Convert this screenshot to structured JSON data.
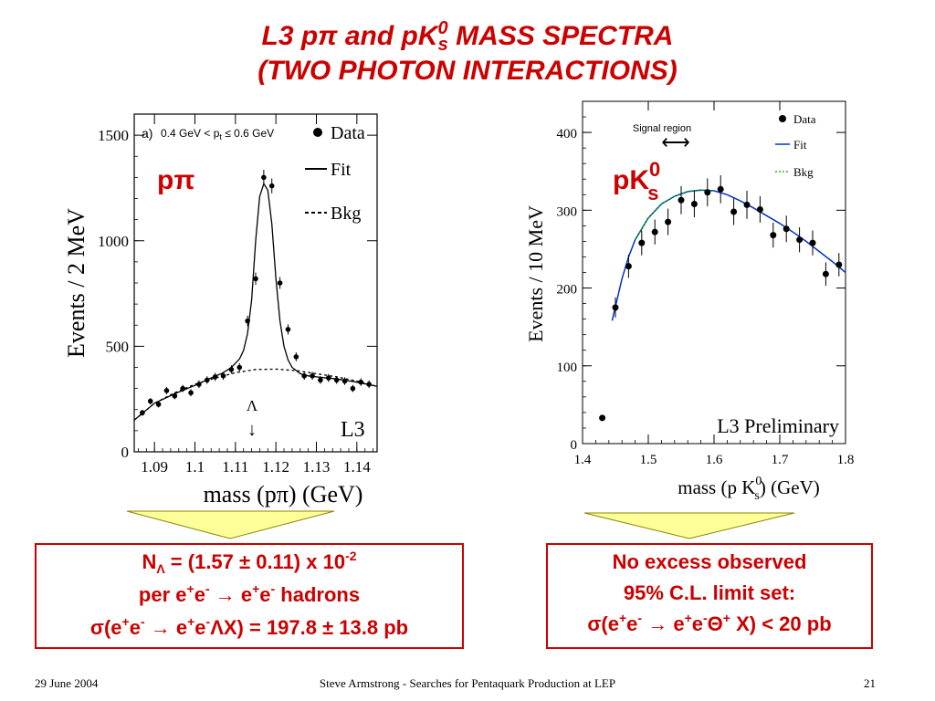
{
  "slide": {
    "title_line1_a": "L3 p",
    "title_line1_b": "π",
    "title_line1_c": " and pK",
    "title_line1_sup": "0",
    "title_line1_sub": "s",
    "title_line1_d": " MASS SPECTRA",
    "title_line2": "(TWO PHOTON INTERACTIONS)",
    "accent_color": "#cc0000",
    "arrow_fill": "#ffff99"
  },
  "left_plot": {
    "panel_label": "a)",
    "cut_label": "0.4 GeV < p",
    "cut_label_sub": "t",
    "cut_label_end": " ≤ 0.6 GeV",
    "overlay_label": "pπ",
    "experiment": "L3",
    "lambda_symbol": "Λ",
    "lambda_arrow": "↓"
  },
  "right_plot": {
    "overlay_label": "pK",
    "overlay_sup": "0",
    "overlay_sub": "s",
    "signal_region": "Signal region",
    "signal_arrow": "⟷",
    "experiment": "L3  Preliminary"
  },
  "chart_data": [
    {
      "type": "scatter",
      "ylabel": "Events / 2 MeV",
      "xlabel": "mass (pπ) (GeV)",
      "xlim": [
        1.085,
        1.145
      ],
      "ylim": [
        0,
        1600
      ],
      "x_ticks": [
        "1.09",
        "1.1",
        "1.11",
        "1.12",
        "1.13",
        "1.14"
      ],
      "y_ticks": [
        "0",
        "500",
        "1000",
        "1500"
      ],
      "legend": [
        "Data",
        "Fit",
        "Bkg"
      ],
      "series": [
        {
          "name": "Data",
          "x": [
            1.087,
            1.089,
            1.091,
            1.093,
            1.095,
            1.097,
            1.099,
            1.101,
            1.103,
            1.105,
            1.107,
            1.109,
            1.111,
            1.113,
            1.115,
            1.117,
            1.119,
            1.121,
            1.123,
            1.125,
            1.127,
            1.129,
            1.131,
            1.133,
            1.135,
            1.137,
            1.139,
            1.141,
            1.143
          ],
          "y": [
            185,
            240,
            225,
            290,
            265,
            300,
            280,
            320,
            340,
            355,
            360,
            390,
            400,
            620,
            820,
            1300,
            1260,
            800,
            580,
            450,
            360,
            360,
            340,
            350,
            340,
            335,
            300,
            330,
            320
          ],
          "err": [
            14,
            15,
            15,
            17,
            16,
            17,
            17,
            18,
            18,
            19,
            19,
            20,
            20,
            25,
            29,
            36,
            35,
            28,
            24,
            21,
            19,
            19,
            18,
            19,
            18,
            18,
            17,
            18,
            18
          ]
        },
        {
          "name": "Fit",
          "x": [
            1.085,
            1.09,
            1.095,
            1.1,
            1.104,
            1.107,
            1.109,
            1.111,
            1.112,
            1.113,
            1.114,
            1.115,
            1.116,
            1.117,
            1.118,
            1.119,
            1.12,
            1.121,
            1.122,
            1.123,
            1.124,
            1.126,
            1.128,
            1.13,
            1.135,
            1.14,
            1.145
          ],
          "y": [
            150,
            230,
            275,
            315,
            350,
            375,
            400,
            440,
            480,
            560,
            720,
            1000,
            1210,
            1270,
            1240,
            1080,
            820,
            620,
            500,
            435,
            400,
            370,
            360,
            355,
            345,
            330,
            310
          ]
        },
        {
          "name": "Bkg",
          "x": [
            1.085,
            1.09,
            1.095,
            1.1,
            1.105,
            1.11,
            1.115,
            1.12,
            1.125,
            1.13,
            1.135,
            1.14,
            1.145
          ],
          "y": [
            150,
            230,
            280,
            320,
            350,
            375,
            390,
            392,
            385,
            370,
            355,
            335,
            310
          ]
        }
      ]
    },
    {
      "type": "scatter",
      "ylabel": "Events / 10 MeV",
      "xlabel": "mass (p K",
      "xlabel_sup": "0",
      "xlabel_sub": "s",
      "xlabel_end": ") (GeV)",
      "xlim": [
        1.4,
        1.8
      ],
      "ylim": [
        0,
        440
      ],
      "x_ticks": [
        "1.4",
        "1.5",
        "1.6",
        "1.7",
        "1.8"
      ],
      "y_ticks": [
        "0",
        "100",
        "200",
        "300",
        "400"
      ],
      "legend": [
        "Data",
        "Fit",
        "Bkg"
      ],
      "series": [
        {
          "name": "Data",
          "x": [
            1.43,
            1.45,
            1.47,
            1.49,
            1.51,
            1.53,
            1.55,
            1.57,
            1.59,
            1.61,
            1.63,
            1.65,
            1.67,
            1.69,
            1.71,
            1.73,
            1.75,
            1.77,
            1.79
          ],
          "y": [
            33,
            175,
            228,
            258,
            272,
            285,
            313,
            308,
            323,
            327,
            298,
            307,
            301,
            268,
            276,
            262,
            258,
            218,
            230
          ],
          "err": [
            0,
            13,
            15,
            16,
            16,
            17,
            18,
            17,
            18,
            18,
            17,
            18,
            17,
            16,
            17,
            16,
            16,
            15,
            15
          ]
        },
        {
          "name": "Fit",
          "x": [
            1.445,
            1.46,
            1.47,
            1.48,
            1.5,
            1.52,
            1.54,
            1.56,
            1.58,
            1.6,
            1.62,
            1.64,
            1.66,
            1.68,
            1.7,
            1.72,
            1.74,
            1.76,
            1.78,
            1.8
          ],
          "y": [
            158,
            212,
            240,
            262,
            290,
            308,
            318,
            324,
            326,
            325,
            320,
            312,
            303,
            293,
            283,
            272,
            260,
            247,
            234,
            220
          ]
        },
        {
          "name": "Bkg",
          "x": [
            1.48,
            1.5,
            1.52,
            1.54,
            1.56,
            1.58,
            1.6
          ],
          "y": [
            262,
            290,
            308,
            318,
            324,
            326,
            325
          ]
        }
      ],
      "colors": {
        "Data": "#000000",
        "Fit": "#0033cc",
        "Bkg": "#00aa00"
      }
    }
  ],
  "result_left": {
    "line1_a": "N",
    "line1_sub": "Λ",
    "line1_b": " = (1.57 ± 0.11) x 10",
    "line1_sup": "-2",
    "line2_a": "per e",
    "line2_s1": "+",
    "line2_b": "e",
    "line2_s2": "-",
    "line2_c": " → e",
    "line2_s3": "+",
    "line2_d": "e",
    "line2_s4": "-",
    "line2_e": " hadrons",
    "line3_a": "σ(e",
    "line3_s1": "+",
    "line3_b": "e",
    "line3_s2": "-",
    "line3_c": " → e",
    "line3_s3": "+",
    "line3_d": "e",
    "line3_s4": "-",
    "line3_e": "ΛX) = 197.8 ± 13.8 pb"
  },
  "result_right": {
    "line1": "No excess observed",
    "line2": "95% C.L. limit set:",
    "line3_a": "σ(e",
    "line3_s1": "+",
    "line3_b": "e",
    "line3_s2": "-",
    "line3_c": " → e",
    "line3_s3": "+",
    "line3_d": "e",
    "line3_s4": "-",
    "line3_e": "Θ",
    "line3_s5": "+",
    "line3_f": " X) < 20 pb"
  },
  "footer": {
    "date": "29 June 2004",
    "center": "Steve Armstrong - Searches for Pentaquark Production at LEP",
    "page": "21"
  }
}
